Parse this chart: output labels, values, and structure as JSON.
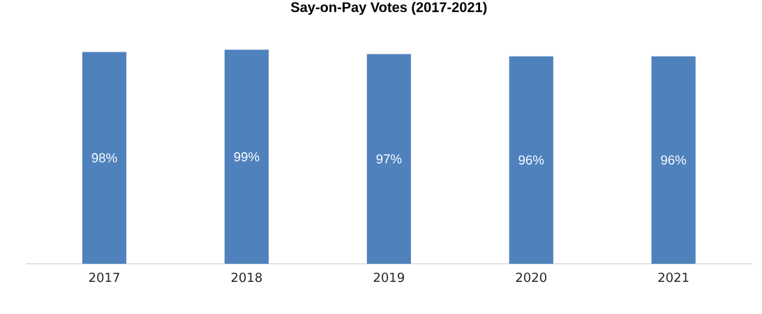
{
  "chart_data": {
    "type": "bar",
    "title": "Say-on-Pay Votes (2017-2021)",
    "categories": [
      "2017",
      "2018",
      "2019",
      "2020",
      "2021"
    ],
    "values": [
      98,
      99,
      97,
      96,
      96
    ],
    "value_labels": [
      "98%",
      "99%",
      "97%",
      "96%",
      "96%"
    ],
    "color": "#4f81bd"
  }
}
